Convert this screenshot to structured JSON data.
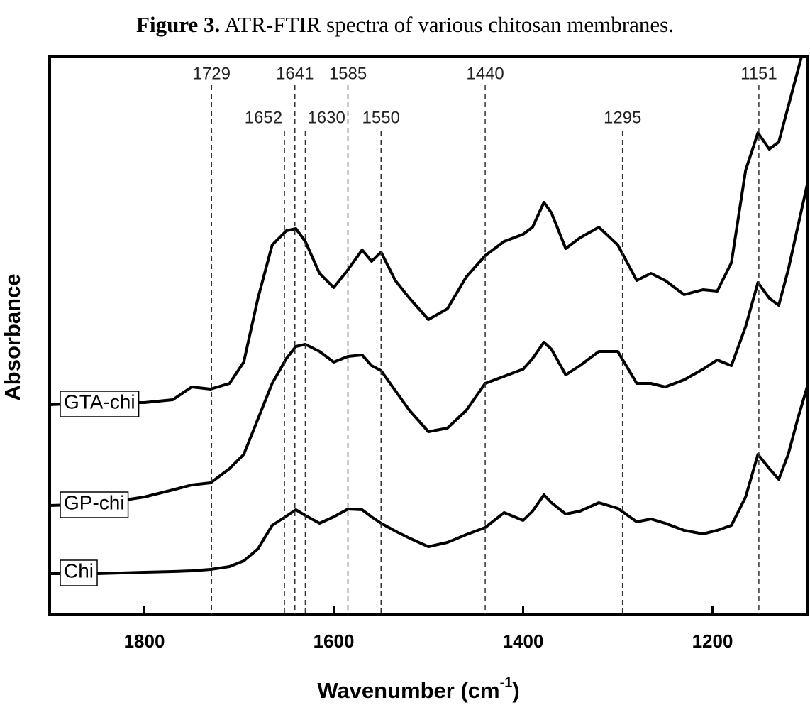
{
  "caption": {
    "label": "Figure 3.",
    "text": "ATR-FTIR spectra of various chitosan membranes."
  },
  "chart_data": {
    "type": "line",
    "xlabel": "Wavenumber (cm",
    "xlabel_sup": "-1",
    "xlabel_end": ")",
    "ylabel": "Absorbance",
    "xlim": [
      1900,
      1100
    ],
    "xticks": [
      1800,
      1600,
      1400,
      1200
    ],
    "ylim": [
      0,
      785
    ],
    "annotations": [
      1729,
      1652,
      1641,
      1630,
      1585,
      1550,
      1440,
      1295,
      1151
    ],
    "x": [
      1900,
      1850,
      1800,
      1770,
      1750,
      1730,
      1710,
      1695,
      1680,
      1665,
      1650,
      1640,
      1630,
      1615,
      1600,
      1585,
      1570,
      1560,
      1550,
      1535,
      1520,
      1500,
      1480,
      1460,
      1440,
      1420,
      1400,
      1390,
      1378,
      1370,
      1355,
      1340,
      1320,
      1300,
      1280,
      1265,
      1250,
      1230,
      1210,
      1195,
      1180,
      1165,
      1152,
      1140,
      1130,
      1120,
      1110,
      1100
    ],
    "series": [
      {
        "name": "GTA-chi",
        "color": "#000000",
        "values": [
          295,
          298,
          298,
          302,
          320,
          317,
          325,
          355,
          445,
          520,
          540,
          543,
          525,
          480,
          460,
          485,
          513,
          497,
          510,
          470,
          445,
          415,
          430,
          475,
          505,
          525,
          535,
          545,
          580,
          565,
          515,
          530,
          545,
          520,
          470,
          480,
          470,
          450,
          457,
          455,
          495,
          625,
          678,
          655,
          665,
          715,
          765,
          815
        ]
      },
      {
        "name": "GP-chi",
        "color": "#000000",
        "values": [
          153,
          155,
          165,
          175,
          182,
          185,
          205,
          225,
          275,
          325,
          360,
          377,
          380,
          370,
          355,
          363,
          365,
          350,
          343,
          315,
          287,
          257,
          262,
          287,
          325,
          335,
          345,
          360,
          383,
          373,
          337,
          350,
          370,
          370,
          325,
          325,
          320,
          330,
          345,
          358,
          350,
          405,
          467,
          445,
          435,
          485,
          545,
          605
        ]
      },
      {
        "name": "Chi",
        "color": "#000000",
        "values": [
          57,
          57,
          59,
          60,
          61,
          63,
          67,
          75,
          92,
          125,
          138,
          147,
          139,
          128,
          137,
          148,
          147,
          137,
          128,
          117,
          107,
          95,
          101,
          112,
          122,
          143,
          132,
          145,
          168,
          157,
          141,
          145,
          157,
          149,
          130,
          134,
          128,
          118,
          113,
          118,
          125,
          165,
          225,
          205,
          190,
          225,
          275,
          320
        ]
      }
    ]
  }
}
